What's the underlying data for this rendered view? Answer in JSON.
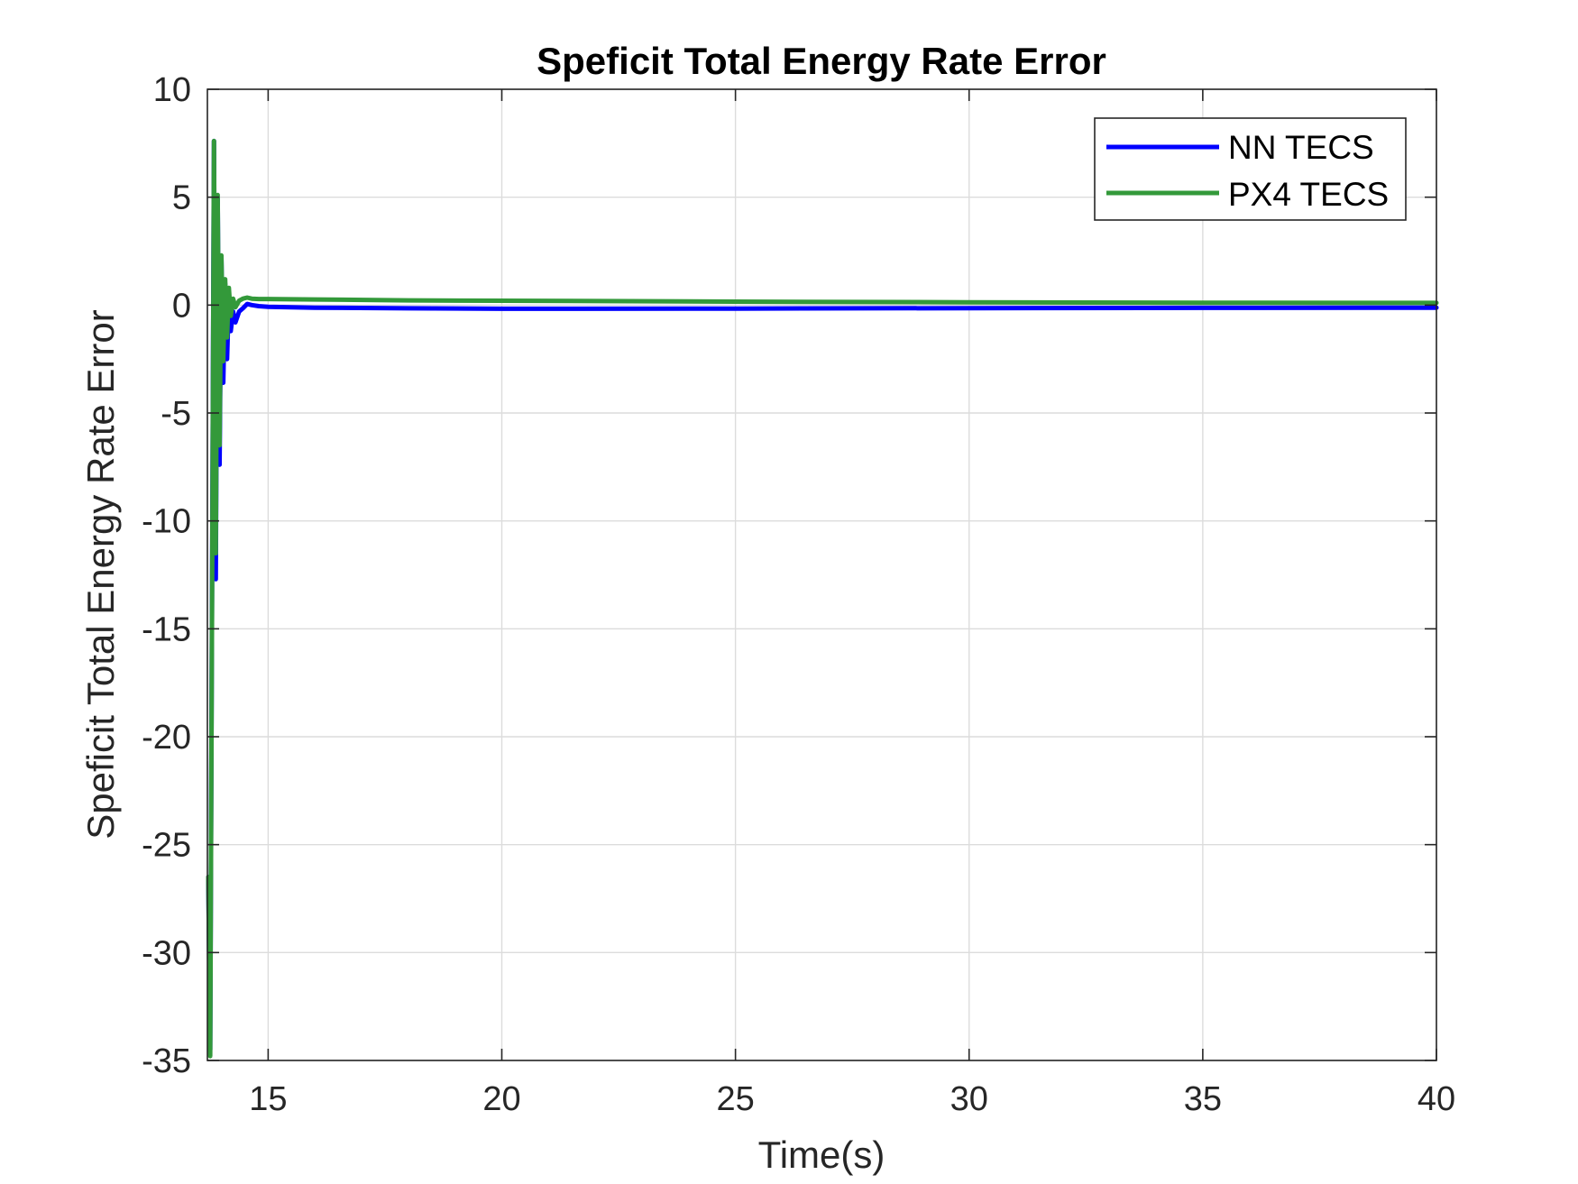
{
  "chart_data": {
    "type": "line",
    "title": "Speficit Total Energy Rate Error",
    "xlabel": "Time(s)",
    "ylabel": "Speficit Total Energy Rate Error",
    "xlim": [
      13.7,
      40
    ],
    "ylim": [
      -35,
      10
    ],
    "xticks": [
      15,
      20,
      25,
      30,
      35,
      40
    ],
    "yticks": [
      10,
      5,
      0,
      -5,
      -10,
      -15,
      -20,
      -25,
      -30,
      -35
    ],
    "grid": true,
    "legend_position": "top-right",
    "series": [
      {
        "name": "NN TECS",
        "color": "#0000ff",
        "x": [
          13.72,
          13.76,
          13.8,
          13.84,
          13.88,
          13.92,
          13.96,
          14.0,
          14.04,
          14.08,
          14.12,
          14.16,
          14.2,
          14.25,
          14.3,
          14.38,
          14.46,
          14.55,
          14.65,
          14.8,
          15.0,
          16.0,
          18.0,
          20.0,
          25.0,
          30.0,
          35.0,
          40.0
        ],
        "y": [
          -26.5,
          -34.5,
          -12.7,
          7.6,
          -12.7,
          5.0,
          -7.4,
          2.2,
          -3.6,
          1.0,
          -2.5,
          0.3,
          -1.2,
          -0.3,
          -0.8,
          -0.3,
          -0.15,
          0.05,
          0.0,
          -0.05,
          -0.08,
          -0.12,
          -0.15,
          -0.17,
          -0.16,
          -0.14,
          -0.13,
          -0.12
        ]
      },
      {
        "name": "PX4 TECS",
        "color": "#33993a",
        "x": [
          13.72,
          13.76,
          13.8,
          13.84,
          13.88,
          13.92,
          13.96,
          14.0,
          14.04,
          14.08,
          14.12,
          14.16,
          14.2,
          14.25,
          14.3,
          14.38,
          14.46,
          14.55,
          14.65,
          14.8,
          15.0,
          16.0,
          18.0,
          20.0,
          25.0,
          30.0,
          35.0,
          40.0
        ],
        "y": [
          -26.5,
          -34.8,
          -13.5,
          7.6,
          -11.5,
          5.1,
          -6.5,
          2.3,
          -2.6,
          1.2,
          -1.5,
          0.8,
          -0.5,
          0.3,
          -0.1,
          0.2,
          0.3,
          0.35,
          0.3,
          0.28,
          0.28,
          0.26,
          0.22,
          0.2,
          0.16,
          0.13,
          0.11,
          0.1
        ]
      }
    ]
  }
}
